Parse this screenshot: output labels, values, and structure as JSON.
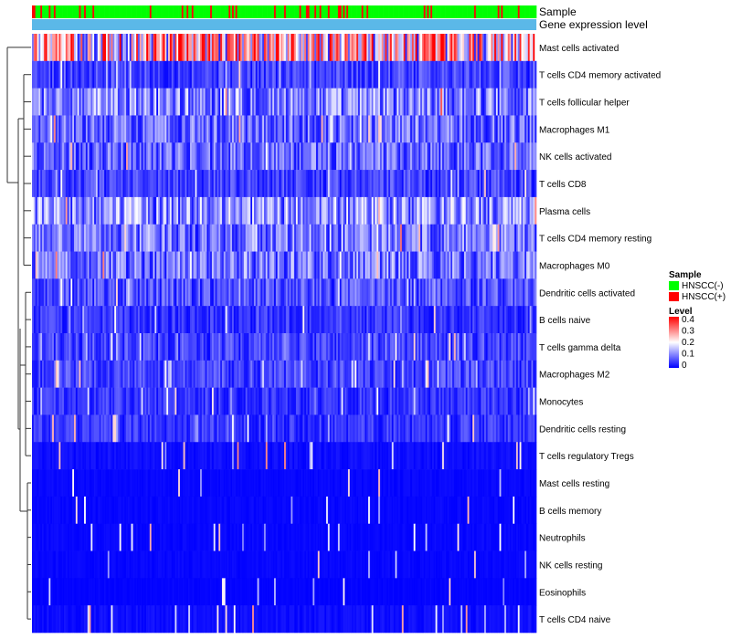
{
  "chart_data": {
    "type": "heatmap",
    "title": "",
    "annotation_rows": [
      "Sample",
      "Gene expression level"
    ],
    "rows": [
      "Mast cells activated",
      "T cells CD4 memory activated",
      "T cells follicular helper",
      "Macrophages M1",
      "NK cells activated",
      "T cells CD8",
      "Plasma cells",
      "T cells CD4 memory resting",
      "Macrophages M0",
      "Dendritic cells activated",
      "B cells naive",
      "T cells gamma delta",
      "Macrophages M2",
      "Monocytes",
      "Dendritic cells resting",
      "T cells regulatory  Tregs",
      "Mast cells resting",
      "B cells memory",
      "Neutrophils",
      "NK cells resting",
      "Eosinophils",
      "T cells CD4 naive"
    ],
    "row_mean_level": [
      0.22,
      0.05,
      0.1,
      0.08,
      0.08,
      0.05,
      0.11,
      0.09,
      0.09,
      0.06,
      0.04,
      0.05,
      0.05,
      0.04,
      0.04,
      0.02,
      0.01,
      0.01,
      0.01,
      0.01,
      0.005,
      0.02
    ],
    "sample_count": 300,
    "legend": {
      "sample_title": "Sample",
      "sample_items": [
        {
          "label": "HNSCC(-)",
          "color": "#00ff00"
        },
        {
          "label": "HNSCC(+)",
          "color": "#ff0000"
        }
      ],
      "level_title": "Level",
      "level_ticks": [
        "0.4",
        "0.3",
        "0.2",
        "0.1",
        "0"
      ],
      "level_range": [
        0,
        0.4
      ]
    },
    "colors": {
      "low": "#0000ff",
      "mid": "#ffffff",
      "high": "#ff0000",
      "expression_bar": "#5bb8e8",
      "negative": "#00ff00",
      "positive": "#ff0000"
    },
    "dendrogram": "row"
  }
}
